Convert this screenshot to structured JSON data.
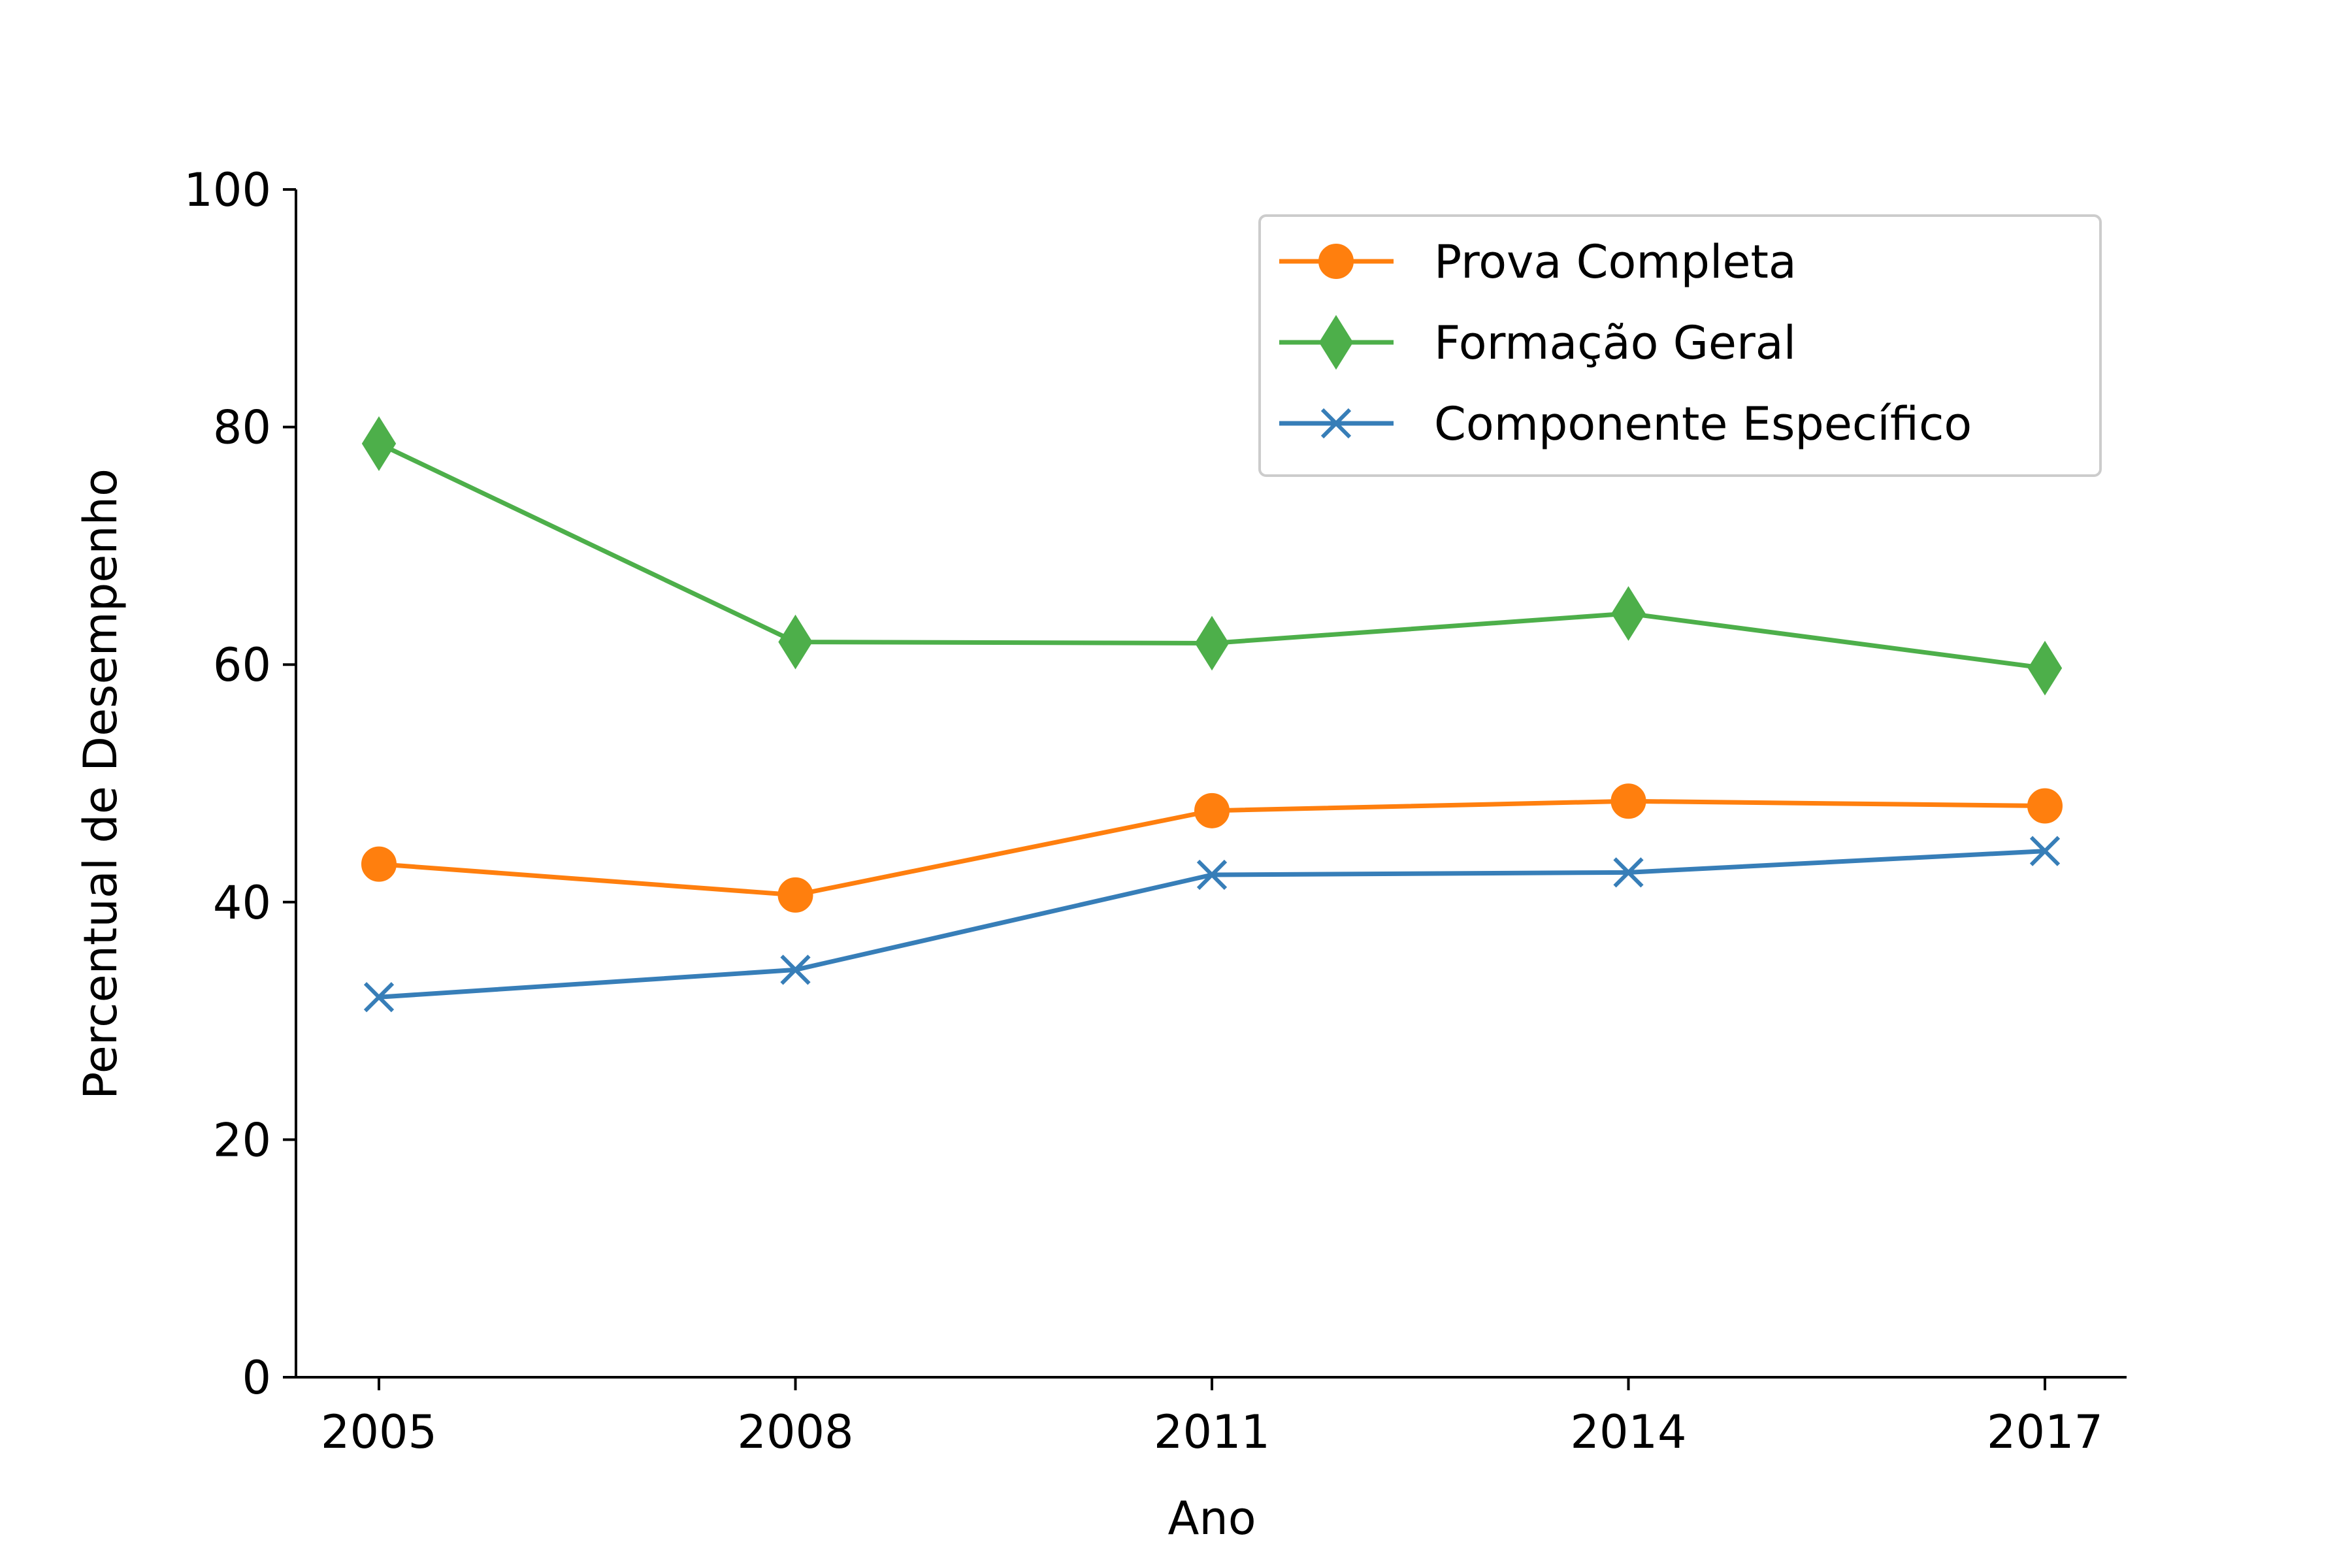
{
  "chart_data": {
    "type": "line",
    "title": "",
    "xlabel": "Ano",
    "ylabel": "Percentual de Desempenho",
    "categories": [
      "2005",
      "2008",
      "2011",
      "2014",
      "2017"
    ],
    "ylim": [
      0,
      100
    ],
    "yticks": [
      0,
      20,
      40,
      60,
      80,
      100
    ],
    "grid": false,
    "legend_position": "top-right",
    "series": [
      {
        "name": "Prova Completa",
        "color": "#ff7f0e",
        "marker": "circle",
        "values": [
          43.2,
          40.6,
          47.7,
          48.5,
          48.1
        ]
      },
      {
        "name": "Formação Geral",
        "color": "#4daf4a",
        "marker": "diamond",
        "values": [
          78.6,
          61.9,
          61.8,
          64.3,
          59.7
        ]
      },
      {
        "name": "Componente Específico",
        "color": "#377eb8",
        "marker": "x",
        "values": [
          32.0,
          34.3,
          42.3,
          42.5,
          44.3
        ]
      }
    ]
  }
}
